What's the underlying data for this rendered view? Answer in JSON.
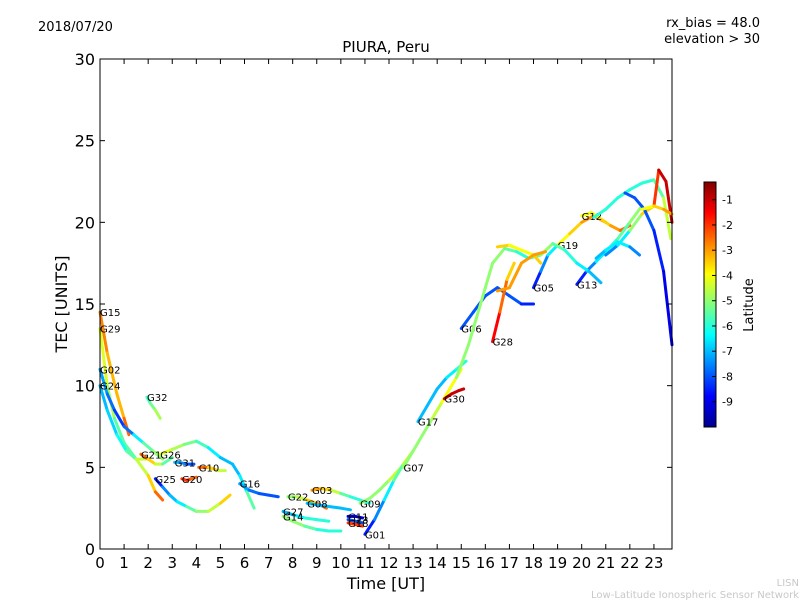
{
  "header": {
    "date": "2018/07/20",
    "rx_bias": "rx_bias = 48.0",
    "elevation": "elevation > 30"
  },
  "footer": {
    "org_short": "LISN",
    "org_long": "Low-Latitude Ionospheric Sensor Network"
  },
  "chart_data": {
    "type": "line",
    "title": "PIURA, Peru",
    "xlabel": "Time [UT]",
    "ylabel": "TEC [UNITS]",
    "xlim": [
      0,
      23.75
    ],
    "ylim": [
      0,
      30
    ],
    "xticks": [
      "0",
      "1",
      "2",
      "3",
      "4",
      "5",
      "6",
      "7",
      "8",
      "9",
      "10",
      "11",
      "12",
      "13",
      "14",
      "15",
      "16",
      "17",
      "18",
      "19",
      "20",
      "21",
      "22",
      "23"
    ],
    "yticks": [
      "0",
      "5",
      "10",
      "15",
      "20",
      "25",
      "30"
    ],
    "colorbar": {
      "label": "Latitude",
      "range": [
        -10,
        -0.3
      ],
      "ticks": [
        "-1",
        "-2",
        "-3",
        "-4",
        "-5",
        "-6",
        "-7",
        "-8",
        "-9"
      ],
      "colors": [
        "#00008f",
        "#0000ff",
        "#0080ff",
        "#00ffff",
        "#80ff80",
        "#ffff00",
        "#ff8000",
        "#ff0000",
        "#800000"
      ]
    },
    "series": [
      {
        "name": "G15",
        "x": [
          0,
          0.3,
          0.7,
          1.0,
          1.2
        ],
        "y": [
          14.5,
          12,
          9.5,
          8,
          7
        ],
        "lat": [
          -2.5,
          -3,
          -3.5,
          -3,
          -2
        ]
      },
      {
        "name": "G29",
        "x": [
          0,
          0.3,
          0.6,
          1.0,
          1.5,
          2.0,
          2.3,
          2.6
        ],
        "y": [
          13.5,
          10,
          8,
          6.5,
          5.5,
          4.5,
          3.5,
          3
        ],
        "lat": [
          -4,
          -4.5,
          -5,
          -6,
          -5,
          -4,
          -3,
          -2
        ]
      },
      {
        "name": "G02",
        "x": [
          0,
          0.3,
          0.6,
          1.0,
          1.4,
          1.8,
          2.2,
          2.6
        ],
        "y": [
          11,
          9.5,
          8.5,
          7.5,
          7,
          6.5,
          6,
          5.5
        ],
        "lat": [
          -7,
          -7.5,
          -8,
          -8.5,
          -7,
          -6,
          -5,
          -5
        ]
      },
      {
        "name": "G24",
        "x": [
          0,
          0.3,
          0.7,
          1.1,
          1.5,
          1.9
        ],
        "y": [
          10,
          8.5,
          7,
          6,
          5.5,
          5.5
        ],
        "lat": [
          -7,
          -7,
          -6.5,
          -6,
          -5,
          -4
        ]
      },
      {
        "name": "G32",
        "x": [
          1.95,
          2.1,
          2.3,
          2.5
        ],
        "y": [
          9.3,
          8.9,
          8.5,
          8.0
        ],
        "lat": [
          -6,
          -5.5,
          -5,
          -4.5
        ]
      },
      {
        "name": "G21",
        "x": [
          1.7,
          2.0,
          2.3,
          2.6,
          3.0
        ],
        "y": [
          5.8,
          5.5,
          5.2,
          5.2,
          5.6
        ],
        "lat": [
          -2,
          -3,
          -4,
          -5,
          -6
        ]
      },
      {
        "name": "G25",
        "x": [
          2.3,
          2.6,
          2.9,
          3.2,
          3.6,
          4.0,
          4.5,
          5.0,
          5.4
        ],
        "y": [
          4.3,
          3.8,
          3.3,
          2.9,
          2.6,
          2.3,
          2.3,
          2.8,
          3.3
        ],
        "lat": [
          -9,
          -8,
          -7,
          -7,
          -6,
          -5,
          -5,
          -4,
          -3
        ]
      },
      {
        "name": "G31",
        "x": [
          3.1,
          3.3,
          3.6,
          3.9
        ],
        "y": [
          5.3,
          5.3,
          5.2,
          5.2
        ],
        "lat": [
          -7,
          -7,
          -8,
          -8
        ]
      },
      {
        "name": "G20",
        "x": [
          3.4,
          3.6,
          3.8,
          4.0
        ],
        "y": [
          4.3,
          4.2,
          4.3,
          4.4
        ],
        "lat": [
          -2,
          -2,
          -2,
          -3
        ]
      },
      {
        "name": "G10",
        "x": [
          4.1,
          4.5,
          4.9,
          5.2
        ],
        "y": [
          5.0,
          5.0,
          4.8,
          4.8
        ],
        "lat": [
          -2,
          -3,
          -4,
          -5
        ]
      },
      {
        "name": "G26",
        "x": [
          2.5,
          3.0,
          3.5,
          4.0,
          4.5,
          5.0,
          5.5,
          5.8,
          6.1,
          6.4
        ],
        "y": [
          5.8,
          6.1,
          6.4,
          6.6,
          6.2,
          5.6,
          5.2,
          4.5,
          3.5,
          2.5
        ],
        "lat": [
          -4,
          -4.5,
          -5,
          -5.5,
          -6,
          -7,
          -7,
          -7,
          -6,
          -5
        ]
      },
      {
        "name": "G16",
        "x": [
          5.8,
          6.2,
          6.6,
          7.0,
          7.4
        ],
        "y": [
          4.0,
          3.6,
          3.4,
          3.3,
          3.2
        ],
        "lat": [
          -7,
          -7.5,
          -8,
          -8,
          -8
        ]
      },
      {
        "name": "G22",
        "x": [
          7.8,
          8.2,
          8.6,
          9.0,
          9.4
        ],
        "y": [
          3.2,
          3.2,
          3.0,
          2.8,
          2.5
        ],
        "lat": [
          -5,
          -5,
          -4,
          -3,
          -2
        ]
      },
      {
        "name": "G03",
        "x": [
          8.8,
          9.2,
          9.6,
          10.0,
          10.4,
          10.8,
          11.2
        ],
        "y": [
          3.6,
          3.7,
          3.6,
          3.4,
          3.2,
          3.0,
          2.8
        ],
        "lat": [
          -3,
          -3,
          -4,
          -5,
          -6,
          -6,
          -6
        ]
      },
      {
        "name": "G08",
        "x": [
          8.6,
          9.0,
          9.5,
          10.0,
          10.4
        ],
        "y": [
          2.8,
          2.7,
          2.6,
          2.5,
          2.4
        ],
        "lat": [
          -7,
          -7,
          -7,
          -7,
          -7
        ]
      },
      {
        "name": "G27",
        "x": [
          7.6,
          8.0,
          8.5,
          9.0,
          9.5
        ],
        "y": [
          2.3,
          2.1,
          1.9,
          1.8,
          1.7
        ],
        "lat": [
          -7,
          -7,
          -6,
          -6,
          -6
        ]
      },
      {
        "name": "G14",
        "x": [
          7.6,
          8.0,
          8.5,
          9.0,
          9.5,
          10.0
        ],
        "y": [
          2.0,
          1.7,
          1.4,
          1.2,
          1.1,
          1.1
        ],
        "lat": [
          -5,
          -5,
          -5,
          -6,
          -6,
          -6
        ]
      },
      {
        "name": "G11",
        "x": [
          10.3,
          10.6,
          10.9
        ],
        "y": [
          2.0,
          2.0,
          1.9
        ],
        "lat": [
          -9,
          -9,
          -9
        ]
      },
      {
        "name": "G23",
        "x": [
          10.3,
          10.6,
          10.9
        ],
        "y": [
          1.8,
          1.7,
          1.6
        ],
        "lat": [
          -8,
          -8,
          -8
        ]
      },
      {
        "name": "G18",
        "x": [
          10.3,
          10.6,
          10.9
        ],
        "y": [
          1.6,
          1.5,
          1.4
        ],
        "lat": [
          -2,
          -2,
          -2
        ]
      },
      {
        "name": "G09",
        "x": [
          10.8,
          11.2,
          11.6,
          12.0,
          12.5,
          13.0
        ],
        "y": [
          2.8,
          3.1,
          3.6,
          4.2,
          5.0,
          6.0
        ],
        "lat": [
          -5,
          -5,
          -5,
          -5,
          -4,
          -4
        ]
      },
      {
        "name": "G01",
        "x": [
          11.0,
          11.4,
          11.8,
          12.2,
          12.6,
          13.0
        ],
        "y": [
          0.9,
          1.8,
          3.0,
          4.2,
          5.2,
          6.0
        ],
        "lat": [
          -9,
          -8,
          -7,
          -6,
          -5,
          -4
        ]
      },
      {
        "name": "G07",
        "x": [
          12.6,
          13.0,
          13.4,
          13.8,
          14.2,
          14.6,
          15.0
        ],
        "y": [
          5.0,
          6.0,
          7.0,
          8.0,
          9.0,
          10.0,
          11.0
        ],
        "lat": [
          -5,
          -5,
          -5,
          -5,
          -4,
          -4,
          -4
        ]
      },
      {
        "name": "G17",
        "x": [
          13.2,
          13.6,
          14.0,
          14.4,
          14.8,
          15.2
        ],
        "y": [
          7.8,
          8.8,
          9.8,
          10.5,
          11.0,
          11.5
        ],
        "lat": [
          -7,
          -7,
          -7,
          -7,
          -6,
          -6
        ]
      },
      {
        "name": "G30",
        "x": [
          14.3,
          14.6,
          14.9,
          15.1
        ],
        "y": [
          9.2,
          9.5,
          9.7,
          9.8
        ],
        "lat": [
          -1,
          -1,
          -1,
          -1
        ]
      },
      {
        "name": "G06",
        "x": [
          15.0,
          15.5,
          16.0,
          16.5,
          17.0,
          17.5,
          18.0
        ],
        "y": [
          13.5,
          14.5,
          15.5,
          16.0,
          15.5,
          15.0,
          15.0
        ],
        "lat": [
          -8,
          -8,
          -8,
          -8,
          -8,
          -8,
          -9
        ]
      },
      {
        "name": "G28",
        "x": [
          16.3,
          16.6,
          16.9,
          17.2
        ],
        "y": [
          12.7,
          14.5,
          16.5,
          17.5
        ],
        "lat": [
          -1,
          -2,
          -3,
          -4
        ]
      },
      {
        "name": "G05",
        "x": [
          18.0,
          18.3,
          18.6,
          19.0
        ],
        "y": [
          16.0,
          17.0,
          18.0,
          18.6
        ],
        "lat": [
          -9,
          -8,
          -7,
          -6
        ]
      },
      {
        "name": "G19",
        "x": [
          19.0,
          19.5,
          20.0,
          20.5,
          21.0
        ],
        "y": [
          18.6,
          19.3,
          20.0,
          20.4,
          20.0
        ],
        "lat": [
          -4,
          -4,
          -3,
          -3,
          -2
        ]
      },
      {
        "name": "G12",
        "x": [
          20.0,
          20.4,
          20.8,
          21.2,
          21.6,
          22.0
        ],
        "y": [
          20.4,
          20.6,
          20.2,
          19.8,
          19.5,
          19.8
        ],
        "lat": [
          -4,
          -4,
          -4,
          -3,
          -3,
          -2
        ]
      },
      {
        "name": "G13",
        "x": [
          19.8,
          20.2,
          20.6,
          21.0,
          21.5,
          22.0,
          22.5
        ],
        "y": [
          16.2,
          17.0,
          17.6,
          18.2,
          19.0,
          20.0,
          21.0
        ],
        "lat": [
          -9,
          -8,
          -7,
          -6,
          -6,
          -5,
          -5
        ]
      },
      {
        "name": "",
        "x": [
          14.8,
          15.3,
          15.8,
          16.3,
          16.8,
          17.3,
          17.8,
          18.3,
          18.8,
          19.3,
          19.8,
          20.3,
          20.8
        ],
        "y": [
          10.5,
          12.5,
          15.0,
          17.5,
          18.4,
          18.2,
          17.8,
          18.0,
          18.7,
          18.3,
          17.5,
          17.0,
          16.3
        ],
        "lat": [
          -5,
          -5,
          -5,
          -5,
          -5,
          -6,
          -6,
          -5,
          -5,
          -6,
          -6,
          -7,
          -7
        ]
      },
      {
        "name": "",
        "x": [
          16.5,
          17.0,
          17.5,
          18.0,
          18.3
        ],
        "y": [
          18.5,
          18.6,
          18.3,
          18.0,
          17.5
        ],
        "lat": [
          -3,
          -4,
          -4,
          -4,
          -3
        ]
      },
      {
        "name": "",
        "x": [
          16.5,
          17.0,
          17.5,
          18.0,
          18.5
        ],
        "y": [
          15.8,
          16.0,
          17.5,
          18.0,
          18.2
        ],
        "lat": [
          -3,
          -3,
          -3,
          -3,
          -3
        ]
      },
      {
        "name": "",
        "x": [
          20.5,
          21.0,
          21.5,
          22.0,
          22.5,
          23.0,
          23.4,
          23.7
        ],
        "y": [
          20.3,
          20.8,
          21.5,
          22.0,
          22.4,
          22.6,
          21.5,
          19.0
        ],
        "lat": [
          -6,
          -6,
          -6,
          -6,
          -6,
          -6,
          -5,
          -4
        ]
      },
      {
        "name": "",
        "x": [
          21.0,
          21.5,
          22.0,
          22.5,
          23.0,
          23.2,
          23.5,
          23.75
        ],
        "y": [
          18.0,
          18.6,
          19.5,
          20.5,
          21.0,
          23.2,
          22.5,
          20.0
        ],
        "lat": [
          -8,
          -7,
          -6,
          -4,
          -3,
          -1,
          -1,
          -1
        ]
      },
      {
        "name": "",
        "x": [
          21.8,
          22.2,
          22.6,
          23.0,
          23.4,
          23.75
        ],
        "y": [
          21.8,
          21.5,
          20.8,
          19.5,
          17.0,
          12.5
        ],
        "lat": [
          -8,
          -8,
          -8,
          -8,
          -9,
          -9
        ]
      },
      {
        "name": "",
        "x": [
          20.6,
          21.0,
          21.5,
          22.0,
          22.4
        ],
        "y": [
          17.8,
          18.3,
          18.8,
          18.5,
          18.0
        ],
        "lat": [
          -7,
          -7,
          -6,
          -7,
          -8
        ]
      },
      {
        "name": "",
        "x": [
          22.5,
          23.0,
          23.4,
          23.75
        ],
        "y": [
          20.8,
          21.0,
          20.8,
          20.5
        ],
        "lat": [
          -4,
          -4,
          -3,
          -3
        ]
      }
    ]
  }
}
